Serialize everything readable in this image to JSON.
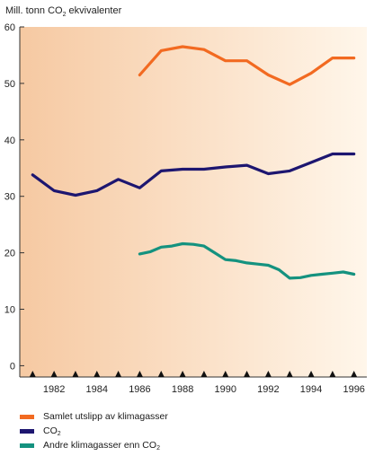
{
  "chart_data": {
    "type": "line",
    "ylabel_prefix": "Mill. tonn CO",
    "ylabel_sub": "2",
    "ylabel_suffix": " ekvivalenter",
    "ylim": [
      -2,
      60
    ],
    "xlim": [
      1980.4,
      1996.6
    ],
    "yticks": [
      0,
      10,
      20,
      30,
      40,
      50,
      60
    ],
    "xticks": [
      1982,
      1984,
      1986,
      1988,
      1990,
      1992,
      1994,
      1996
    ],
    "year_markers": [
      1981,
      1982,
      1983,
      1984,
      1985,
      1986,
      1987,
      1988,
      1989,
      1990,
      1991,
      1992,
      1993,
      1994,
      1995,
      1996
    ],
    "series": [
      {
        "name": "Samlet utslipp av klimagasser",
        "color": "#f26a21",
        "x": [
          1986,
          1987,
          1988,
          1989,
          1990,
          1991,
          1992,
          1993,
          1994,
          1995,
          1996
        ],
        "values": [
          51.5,
          55.8,
          56.5,
          56.0,
          54.0,
          54.0,
          51.5,
          49.8,
          51.8,
          54.5,
          54.5
        ]
      },
      {
        "name_prefix": "CO",
        "name_sub": "2",
        "name_suffix": "",
        "color": "#1d1670",
        "x": [
          1981,
          1982,
          1983,
          1984,
          1985,
          1986,
          1987,
          1988,
          1989,
          1990,
          1991,
          1992,
          1993,
          1994,
          1995,
          1996
        ],
        "values": [
          33.8,
          31.0,
          30.2,
          31.0,
          33.0,
          31.5,
          34.5,
          34.8,
          34.8,
          35.2,
          35.5,
          34.0,
          34.5,
          36.0,
          37.5,
          37.5
        ]
      },
      {
        "name_prefix": "Andre klimagasser enn CO",
        "name_sub": "2",
        "name_suffix": "",
        "color": "#14927f",
        "x": [
          1986,
          1986.5,
          1987,
          1987.5,
          1988,
          1988.5,
          1989,
          1989.5,
          1990,
          1990.5,
          1991,
          1991.5,
          1992,
          1992.5,
          1993,
          1993.5,
          1994,
          1994.5,
          1995,
          1995.5,
          1996
        ],
        "values": [
          19.8,
          20.2,
          21.0,
          21.2,
          21.6,
          21.5,
          21.2,
          20.0,
          18.8,
          18.6,
          18.2,
          18.0,
          17.8,
          17.0,
          15.5,
          15.6,
          16.0,
          16.2,
          16.4,
          16.6,
          16.2
        ]
      }
    ],
    "background_gradient": [
      "#f6c9a2",
      "#fff6ea"
    ],
    "grid": false
  }
}
